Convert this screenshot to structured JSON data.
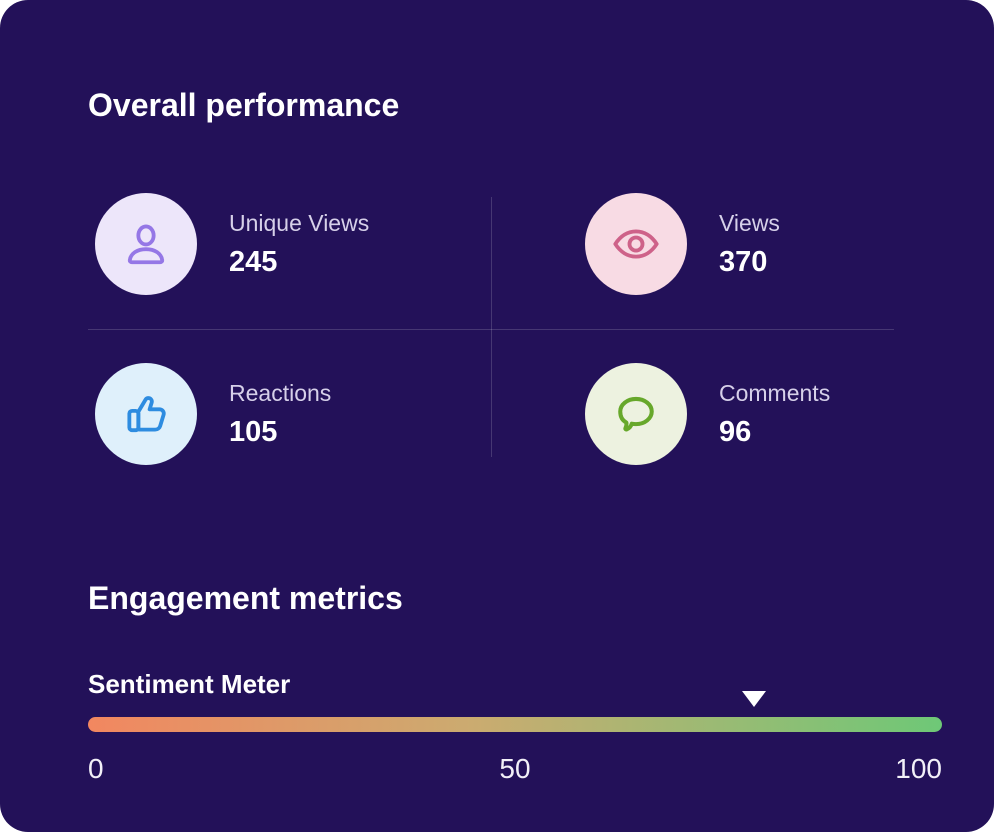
{
  "page": {
    "background": "#FFFFFF",
    "card_background": "#231159",
    "divider_color": "rgba(255,255,255,0.16)"
  },
  "overall": {
    "title": "Overall performance",
    "metrics": [
      {
        "label": "Unique Views",
        "value": "245",
        "icon": "user-icon",
        "icon_color": "#9577E6",
        "icon_bg": "#EDE6FA"
      },
      {
        "label": "Views",
        "value": "370",
        "icon": "eye-icon",
        "icon_color": "#CE6289",
        "icon_bg": "#F8DBE4"
      },
      {
        "label": "Reactions",
        "value": "105",
        "icon": "thumbs-up-icon",
        "icon_color": "#2E8CE0",
        "icon_bg": "#DFF0FB"
      },
      {
        "label": "Comments",
        "value": "96",
        "icon": "comment-bubble-icon",
        "icon_color": "#67A82B",
        "icon_bg": "#EDF2E0"
      }
    ]
  },
  "engagement": {
    "title": "Engagement metrics",
    "sentiment_meter": {
      "label": "Sentiment Meter",
      "value": 78,
      "min": 0,
      "max": 100,
      "ticks": [
        "0",
        "50",
        "100"
      ],
      "gradient": [
        "#F28760",
        "#CBAB70",
        "#6EC877"
      ],
      "marker_color": "#FFFFFF"
    }
  }
}
